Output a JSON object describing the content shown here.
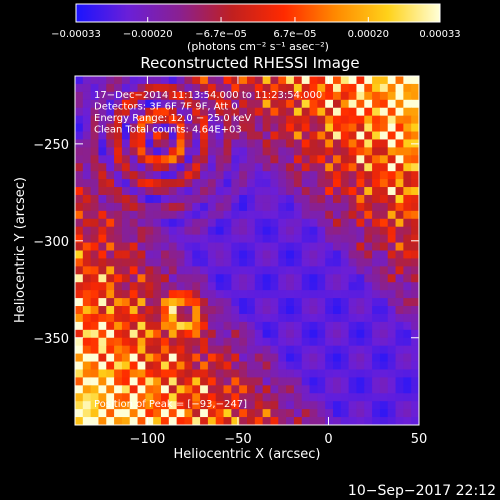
{
  "colorbar": {
    "ticks": [
      {
        "value": -0.00033,
        "label": "−0.00033"
      },
      {
        "value": -0.0002,
        "label": "−0.00020"
      },
      {
        "value": -6.7e-05,
        "label": "−6.7e−05"
      },
      {
        "value": 6.7e-05,
        "label": "6.7e−05"
      },
      {
        "value": 0.0002,
        "label": "0.00020"
      },
      {
        "value": 0.00033,
        "label": "0.00033"
      }
    ],
    "range": [
      -0.00033,
      0.00033
    ],
    "unit_label": "(photons cm⁻² s⁻¹ asec⁻²)",
    "colors": [
      "#1a14ff",
      "#6a1fd8",
      "#8a2090",
      "#c02020",
      "#ff2a00",
      "#ff8a00",
      "#ffd21a",
      "#ffffd8"
    ]
  },
  "chart_data": {
    "type": "heatmap",
    "title": "Reconstructed RHESSI Image",
    "xlabel": "Heliocentric X (arcsec)",
    "ylabel": "Heliocentric Y (arcsec)",
    "xlim": [
      -140,
      50
    ],
    "ylim": [
      -395,
      -215
    ],
    "x_ticks": [
      {
        "value": -100,
        "label": "−100"
      },
      {
        "value": -50,
        "label": "−50"
      },
      {
        "value": 0,
        "label": "0"
      },
      {
        "value": 50,
        "label": "50"
      }
    ],
    "y_ticks": [
      {
        "value": -250,
        "label": "−250"
      },
      {
        "value": -300,
        "label": "−300"
      },
      {
        "value": -350,
        "label": "−350"
      }
    ],
    "annotations": [
      "17−Dec−2014 11:13:54.000 to 11:23:54.000",
      "Detectors: 3F 6F 7F 9F, Att 0",
      "Energy Range: 12.0 − 25.0 keV",
      "Clean    Total counts: 4.64E+03"
    ],
    "peak_label": "Position of Peak = [−93,−247]",
    "peak": [
      -93,
      -247
    ],
    "grid": false
  },
  "footer": {
    "timestamp": "10−Sep−2017 22:12"
  }
}
